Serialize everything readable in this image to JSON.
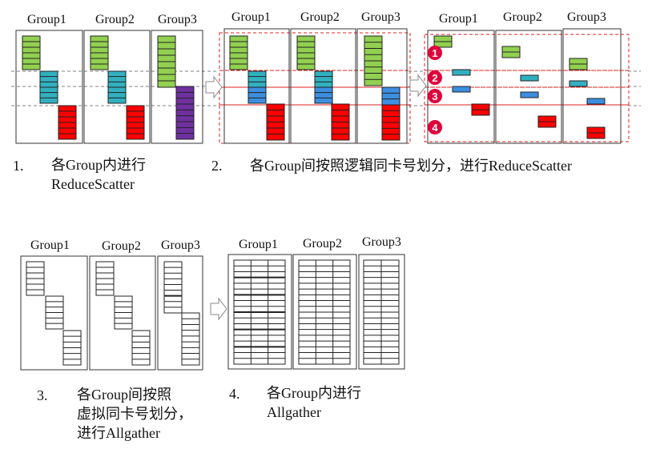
{
  "groups": [
    "Group1",
    "Group2",
    "Group3"
  ],
  "steps": [
    {
      "num": "1.",
      "line1": "各Group内进行",
      "line2": "ReduceScatter"
    },
    {
      "num": "2.",
      "line1": "各Group间按照逻辑同卡号划分，进行ReduceScatter"
    },
    {
      "num": "3.",
      "line1": "各Group间按照",
      "line2": "虚拟同卡号划分，",
      "line3": "进行Allgather"
    },
    {
      "num": "4.",
      "line1": "各Group内进行",
      "line2": "Allgather"
    }
  ],
  "markers": [
    "1",
    "2",
    "3",
    "4"
  ],
  "colors": {
    "green": "#92d050",
    "teal": "#31b0c0",
    "red": "#ff0000",
    "purple": "#7030a0",
    "blue": "#3c8fe0",
    "marker": "#e0003a",
    "dash_red": "#e02020",
    "dash_gray": "#808080"
  }
}
